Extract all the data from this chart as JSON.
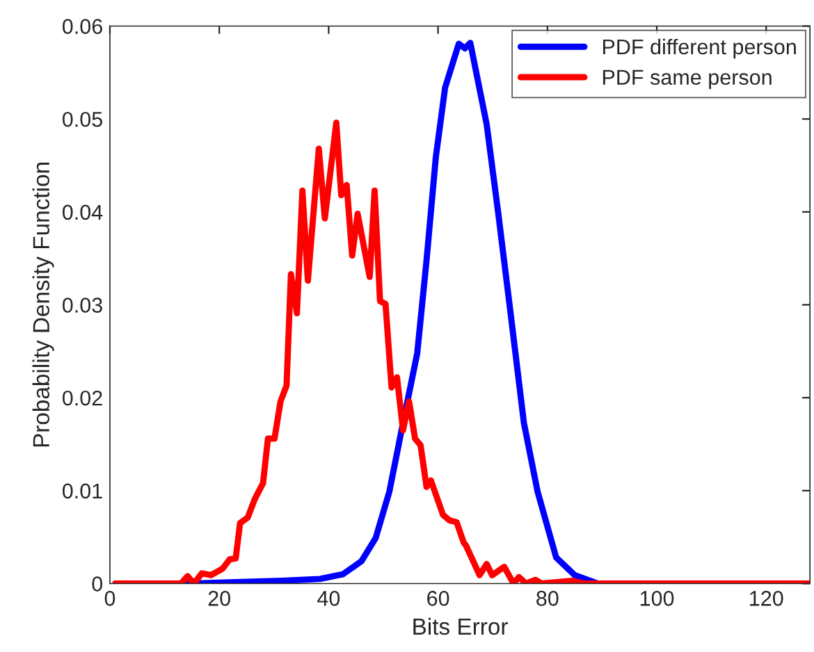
{
  "chart_data": {
    "type": "line",
    "xlabel": "Bits Error",
    "ylabel": "Probability Density Function",
    "xlim": [
      0,
      128
    ],
    "ylim": [
      0,
      0.06
    ],
    "xticks": [
      0,
      20,
      40,
      60,
      80,
      100,
      120
    ],
    "yticks": [
      0,
      0.01,
      0.02,
      0.03,
      0.04,
      0.05,
      0.06
    ],
    "grid": false,
    "legend": "top right",
    "line_style": "solid",
    "marker": "none",
    "series": [
      {
        "name": "PDF different person",
        "color": "#0000ff",
        "x": [
          1,
          15,
          20,
          31.6,
          38.4,
          42.6,
          46,
          48.6,
          51.1,
          53.6,
          56.2,
          57.9,
          59.6,
          61.3,
          63.8,
          64.9,
          65.9,
          68.9,
          71,
          73.1,
          75.7,
          78.2,
          81.6,
          85,
          89.2,
          128
        ],
        "values": [
          0,
          0,
          0.0001,
          0.0003,
          0.0005,
          0.001,
          0.0024,
          0.0049,
          0.0099,
          0.0173,
          0.0248,
          0.0348,
          0.0459,
          0.0534,
          0.0581,
          0.0576,
          0.0582,
          0.0494,
          0.0399,
          0.0299,
          0.0173,
          0.0099,
          0.0028,
          0.0009,
          0,
          0
        ]
      },
      {
        "name": "PDF same person",
        "color": "#ff0000",
        "x": [
          1,
          13,
          14.2,
          15.4,
          16.8,
          18.5,
          20.6,
          21.9,
          23,
          23.8,
          25.2,
          26.5,
          28,
          28.9,
          30.1,
          31.2,
          32.3,
          33.1,
          34.2,
          35.2,
          36.2,
          38.2,
          39.3,
          41.4,
          42.3,
          43.3,
          44.3,
          45.3,
          47.5,
          48.4,
          49.4,
          50.4,
          51.5,
          52.5,
          53.6,
          54.7,
          55.8,
          56.8,
          57.9,
          58.7,
          60.9,
          62.1,
          63.4,
          64.7,
          65.1,
          67.6,
          68.9,
          69.9,
          72.1,
          73.8,
          74.8,
          76.1,
          77.8,
          79,
          84.6,
          86.7,
          128
        ],
        "values": [
          0,
          0,
          0.0008,
          0,
          0.0011,
          0.0009,
          0.0016,
          0.0026,
          0.0027,
          0.0065,
          0.0071,
          0.0091,
          0.0108,
          0.0156,
          0.0156,
          0.0196,
          0.0213,
          0.0333,
          0.0291,
          0.0423,
          0.0326,
          0.0468,
          0.0393,
          0.0496,
          0.0418,
          0.0429,
          0.0353,
          0.0398,
          0.033,
          0.0423,
          0.0304,
          0.0301,
          0.0211,
          0.0222,
          0.0165,
          0.0196,
          0.0156,
          0.0149,
          0.0104,
          0.0111,
          0.0074,
          0.0068,
          0.0066,
          0.0044,
          0.0041,
          0.0009,
          0.0021,
          0.0009,
          0.0018,
          0,
          0.0007,
          0,
          0.0004,
          0,
          0.0003,
          0,
          0
        ]
      }
    ]
  }
}
